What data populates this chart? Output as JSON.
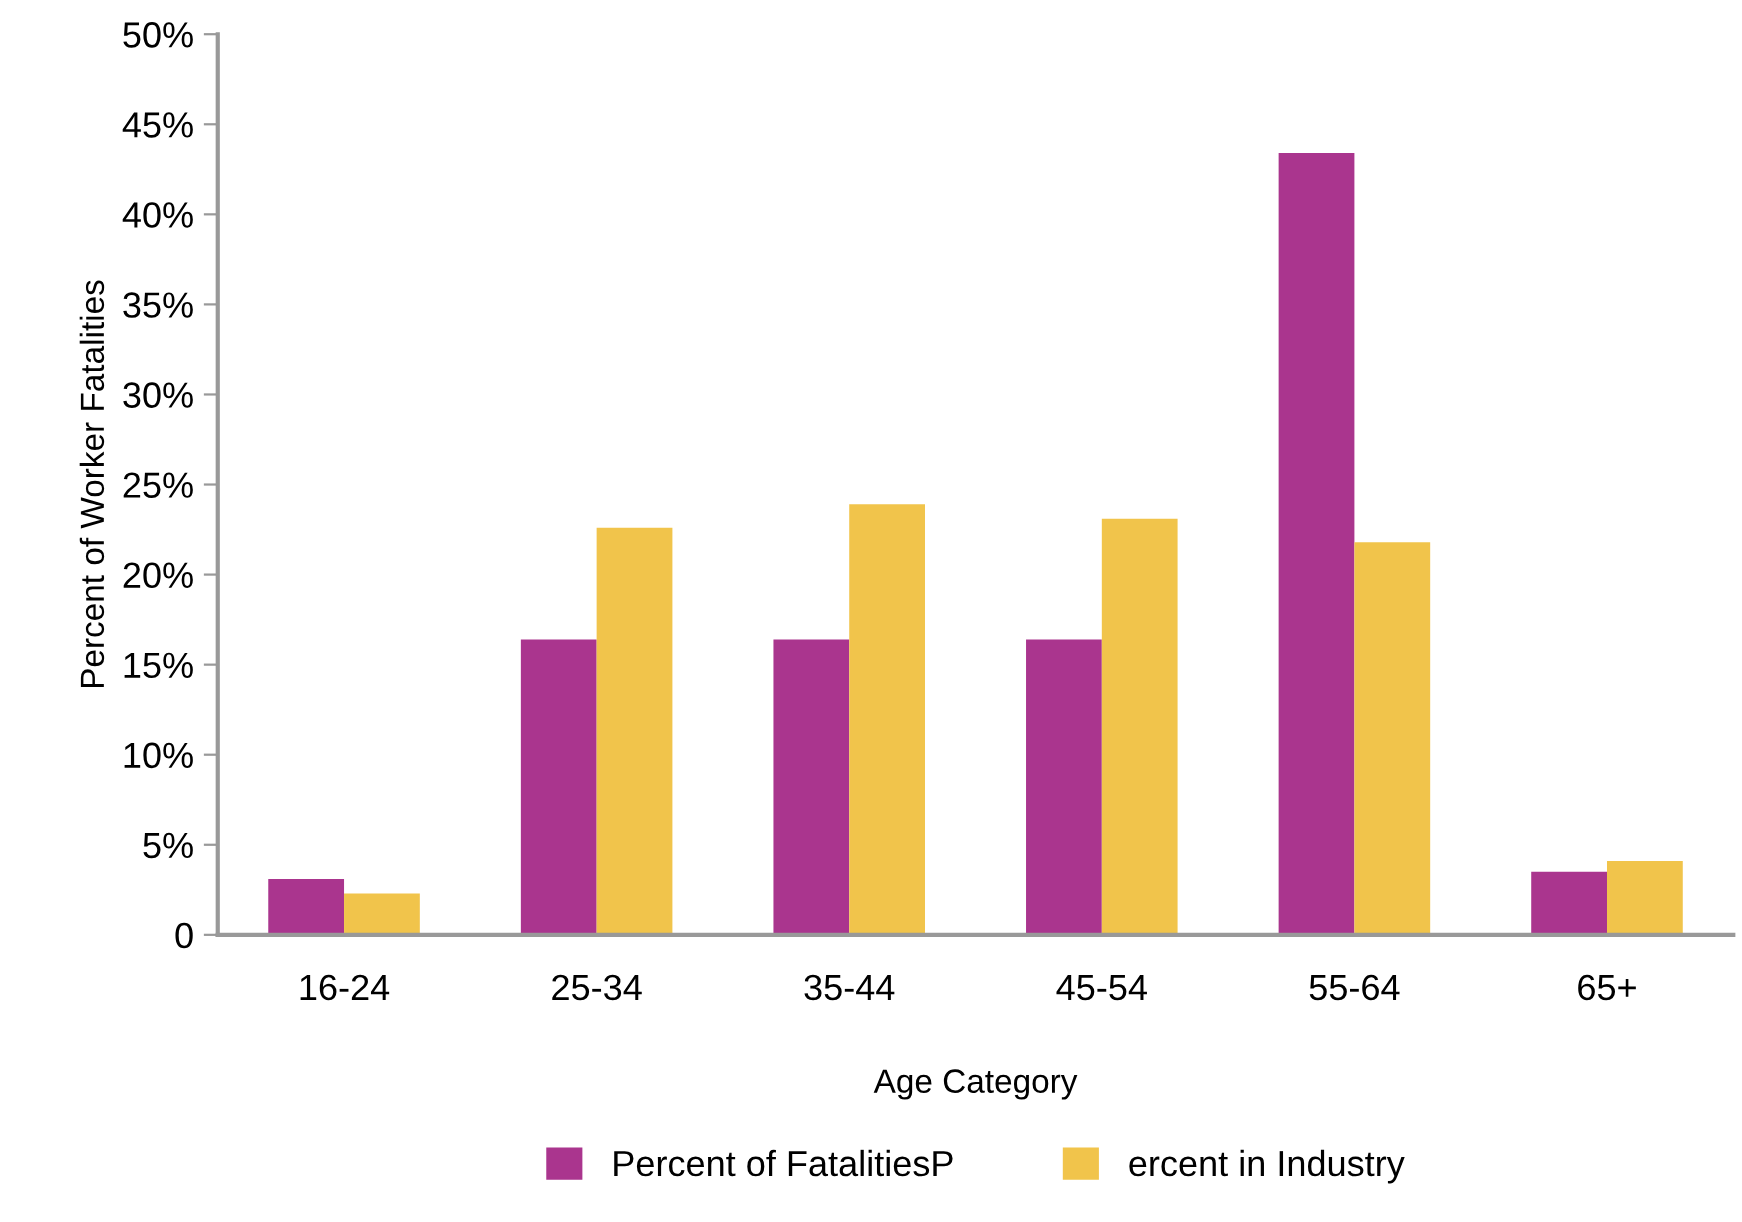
{
  "chart_data": {
    "type": "bar",
    "xlabel": "Age Category",
    "ylabel": "Percent of Worker Fatalities",
    "categories": [
      "16-24",
      "25-34",
      "35-44",
      "45-54",
      "55-64",
      "65+"
    ],
    "series": [
      {
        "name": "Percent of FatalitiesP",
        "color": "#aa358e",
        "values": [
          3.1,
          16.4,
          16.4,
          16.4,
          43.4,
          3.5
        ]
      },
      {
        "name": "ercent in Industry",
        "color": "#f1c44b",
        "values": [
          2.3,
          22.6,
          23.9,
          23.1,
          21.8,
          4.1
        ]
      }
    ],
    "ylim": [
      0,
      50
    ],
    "yticks": [
      {
        "value": 0,
        "label": "0"
      },
      {
        "value": 5,
        "label": "5%"
      },
      {
        "value": 10,
        "label": "10%"
      },
      {
        "value": 15,
        "label": "15%"
      },
      {
        "value": 20,
        "label": "20%"
      },
      {
        "value": 25,
        "label": "25%"
      },
      {
        "value": 30,
        "label": "30%"
      },
      {
        "value": 35,
        "label": "35%"
      },
      {
        "value": 40,
        "label": "40%"
      },
      {
        "value": 45,
        "label": "45%"
      },
      {
        "value": 50,
        "label": "50%"
      }
    ],
    "grid": false,
    "legend": "bottom"
  }
}
